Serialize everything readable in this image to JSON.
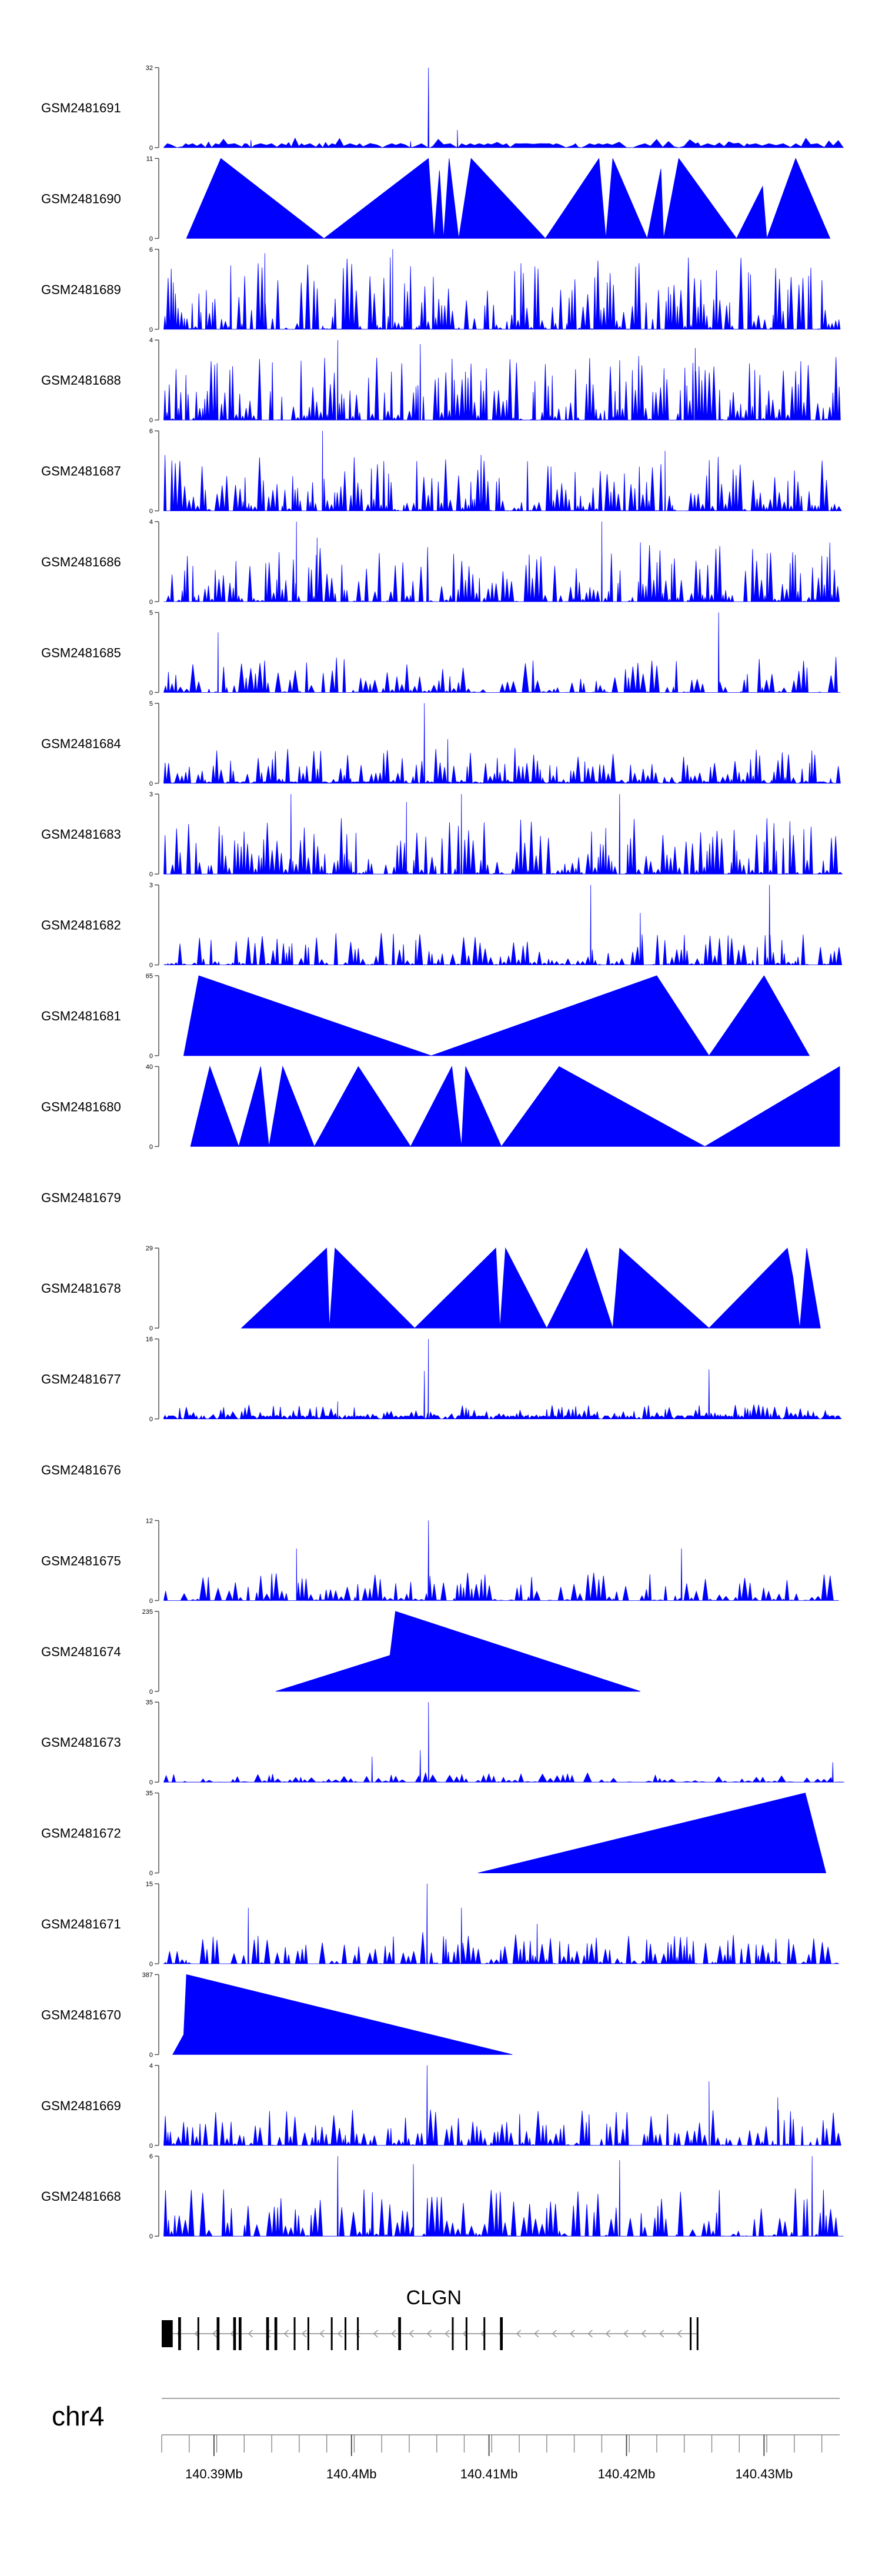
{
  "chart_data": {
    "type": "area",
    "title": "",
    "chromosome": "chr4",
    "xlim": [
      140.3862,
      140.4355
    ],
    "x_ticks": [
      140.39,
      140.4,
      140.41,
      140.42,
      140.43
    ],
    "x_tick_labels": [
      "140.39Mb",
      "140.4Mb",
      "140.41Mb",
      "140.42Mb",
      "140.43Mb"
    ],
    "fill_color": "#0000ff",
    "tracks": [
      {
        "name": "GSM2481691",
        "ymax": 32,
        "y_ticks": [
          "32",
          "0"
        ],
        "style": "peaks",
        "baseline": 0.05,
        "peak_max": 0.12,
        "density": 70,
        "seed": 11,
        "spikes": [
          [
            140.4056,
            1.0
          ],
          [
            140.4077,
            0.22
          ],
          [
            140.4043,
            0.08
          ],
          [
            140.3927,
            0.07
          ]
        ]
      },
      {
        "name": "GSM2481690",
        "ymax": 11,
        "y_ticks": [
          "11",
          "0"
        ],
        "style": "poly",
        "points": [
          [
            140.388,
            0.0
          ],
          [
            140.3905,
            1.0
          ],
          [
            140.398,
            0.0
          ],
          [
            140.4056,
            1.0
          ],
          [
            140.406,
            0.0
          ],
          [
            140.4064,
            0.85
          ],
          [
            140.4067,
            0.0
          ],
          [
            140.4071,
            1.0
          ],
          [
            140.4078,
            0.0
          ],
          [
            140.4087,
            1.0
          ],
          [
            140.4141,
            0.0
          ],
          [
            140.418,
            1.0
          ],
          [
            140.4185,
            0.0
          ],
          [
            140.419,
            1.0
          ],
          [
            140.4215,
            0.0
          ],
          [
            140.4225,
            0.87
          ],
          [
            140.4227,
            0.0
          ],
          [
            140.4238,
            1.0
          ],
          [
            140.428,
            0.0
          ],
          [
            140.4299,
            0.65
          ],
          [
            140.4302,
            0.0
          ],
          [
            140.4323,
            1.0
          ],
          [
            140.4348,
            0.0
          ]
        ]
      },
      {
        "name": "GSM2481689",
        "ymax": 6,
        "y_ticks": [
          "6",
          "0"
        ],
        "style": "peaks",
        "baseline": 0.0,
        "peak_max": 0.9,
        "density": 210,
        "seed": 23,
        "spikes": [
          [
            140.403,
            1.0
          ],
          [
            140.3937,
            0.95
          ]
        ]
      },
      {
        "name": "GSM2481688",
        "ymax": 4,
        "y_ticks": [
          "4",
          "0"
        ],
        "style": "peaks",
        "baseline": 0.0,
        "peak_max": 0.8,
        "density": 210,
        "seed": 37,
        "spikes": [
          [
            140.399,
            1.0
          ],
          [
            140.405,
            0.95
          ],
          [
            140.425,
            0.9
          ]
        ]
      },
      {
        "name": "GSM2481687",
        "ymax": 6,
        "y_ticks": [
          "6",
          "0"
        ],
        "style": "peaks",
        "baseline": 0.0,
        "peak_max": 0.7,
        "density": 200,
        "seed": 41,
        "spikes": [
          [
            140.3979,
            1.0
          ],
          [
            140.4228,
            0.75
          ]
        ]
      },
      {
        "name": "GSM2481686",
        "ymax": 4,
        "y_ticks": [
          "4",
          "0"
        ],
        "style": "peaks",
        "baseline": 0.0,
        "peak_max": 0.75,
        "density": 200,
        "seed": 53,
        "spikes": [
          [
            140.396,
            1.0
          ],
          [
            140.4182,
            1.0
          ],
          [
            140.3975,
            0.8
          ]
        ]
      },
      {
        "name": "GSM2481685",
        "ymax": 5,
        "y_ticks": [
          "5",
          "0"
        ],
        "style": "peaks",
        "baseline": 0.0,
        "peak_max": 0.45,
        "density": 150,
        "seed": 67,
        "spikes": [
          [
            140.4267,
            1.0
          ],
          [
            140.3903,
            0.75
          ]
        ]
      },
      {
        "name": "GSM2481684",
        "ymax": 5,
        "y_ticks": [
          "5",
          "0"
        ],
        "style": "peaks",
        "baseline": 0.02,
        "peak_max": 0.45,
        "density": 190,
        "seed": 71,
        "spikes": [
          [
            140.4053,
            1.0
          ],
          [
            140.407,
            0.55
          ]
        ]
      },
      {
        "name": "GSM2481683",
        "ymax": 3,
        "y_ticks": [
          "3",
          "0"
        ],
        "style": "peaks",
        "baseline": 0.0,
        "peak_max": 0.7,
        "density": 200,
        "seed": 83,
        "spikes": [
          [
            140.3956,
            1.0
          ],
          [
            140.408,
            1.0
          ],
          [
            140.4195,
            1.0
          ],
          [
            140.404,
            0.9
          ]
        ]
      },
      {
        "name": "GSM2481682",
        "ymax": 3,
        "y_ticks": [
          "3",
          "0"
        ],
        "style": "peaks",
        "baseline": 0.0,
        "peak_max": 0.4,
        "density": 170,
        "seed": 97,
        "spikes": [
          [
            140.4174,
            1.0
          ],
          [
            140.4304,
            1.0
          ],
          [
            140.421,
            0.65
          ]
        ]
      },
      {
        "name": "GSM2481681",
        "ymax": 65,
        "y_ticks": [
          "65",
          "0"
        ],
        "style": "poly",
        "points": [
          [
            140.3878,
            0.0
          ],
          [
            140.3889,
            1.0
          ],
          [
            140.4058,
            0.0
          ],
          [
            140.4222,
            1.0
          ],
          [
            140.426,
            0.0
          ],
          [
            140.43,
            1.0
          ],
          [
            140.4333,
            0.0
          ]
        ]
      },
      {
        "name": "GSM2481680",
        "ymax": 40,
        "y_ticks": [
          "40",
          "0"
        ],
        "style": "poly",
        "points": [
          [
            140.3883,
            0.0
          ],
          [
            140.3897,
            1.0
          ],
          [
            140.3918,
            0.0
          ],
          [
            140.3934,
            1.0
          ],
          [
            140.394,
            0.0
          ],
          [
            140.395,
            1.0
          ],
          [
            140.3973,
            0.0
          ],
          [
            140.4005,
            1.0
          ],
          [
            140.4043,
            0.0
          ],
          [
            140.4073,
            1.0
          ],
          [
            140.408,
            0.0
          ],
          [
            140.4083,
            1.0
          ],
          [
            140.4109,
            0.0
          ],
          [
            140.4151,
            1.0
          ],
          [
            140.4257,
            0.0
          ],
          [
            140.4355,
            1.0
          ],
          [
            140.4355,
            0.0
          ]
        ]
      },
      {
        "name": "GSM2481679",
        "ymax": 0,
        "y_ticks": [],
        "style": "empty"
      },
      {
        "name": "GSM2481678",
        "ymax": 29,
        "y_ticks": [
          "29",
          "0"
        ],
        "style": "poly",
        "points": [
          [
            140.392,
            0.0
          ],
          [
            140.3982,
            1.0
          ],
          [
            140.3984,
            0.0
          ],
          [
            140.3988,
            1.0
          ],
          [
            140.4046,
            0.0
          ],
          [
            140.4105,
            1.0
          ],
          [
            140.4108,
            0.0
          ],
          [
            140.4112,
            1.0
          ],
          [
            140.4142,
            0.0
          ],
          [
            140.4171,
            1.0
          ],
          [
            140.419,
            0.0
          ],
          [
            140.4195,
            1.0
          ],
          [
            140.426,
            0.0
          ],
          [
            140.4317,
            1.0
          ],
          [
            140.4321,
            0.64
          ],
          [
            140.4326,
            0.0
          ],
          [
            140.4331,
            1.0
          ],
          [
            140.4341,
            0.0
          ]
        ]
      },
      {
        "name": "GSM2481677",
        "ymax": 16,
        "y_ticks": [
          "16",
          "0"
        ],
        "style": "peaks",
        "baseline": 0.04,
        "peak_max": 0.18,
        "density": 190,
        "seed": 101,
        "spikes": [
          [
            140.4056,
            1.0
          ],
          [
            140.4053,
            0.6
          ],
          [
            140.426,
            0.62
          ],
          [
            140.399,
            0.22
          ]
        ]
      },
      {
        "name": "GSM2481676",
        "ymax": 0,
        "y_ticks": [],
        "style": "empty"
      },
      {
        "name": "GSM2481675",
        "ymax": 12,
        "y_ticks": [
          "12",
          "0"
        ],
        "style": "peaks",
        "baseline": 0.0,
        "peak_max": 0.35,
        "density": 140,
        "seed": 113,
        "spikes": [
          [
            140.4056,
            1.0
          ],
          [
            140.396,
            0.65
          ],
          [
            140.424,
            0.65
          ]
        ]
      },
      {
        "name": "GSM2481674",
        "ymax": 235,
        "y_ticks": [
          "235",
          "0"
        ],
        "style": "poly",
        "points": [
          [
            140.3945,
            0.0
          ],
          [
            140.4028,
            0.45
          ],
          [
            140.4032,
            1.0
          ],
          [
            140.421,
            0.0
          ]
        ]
      },
      {
        "name": "GSM2481673",
        "ymax": 35,
        "y_ticks": [
          "35",
          "0"
        ],
        "style": "peaks",
        "baseline": 0.0,
        "peak_max": 0.12,
        "density": 110,
        "seed": 127,
        "spikes": [
          [
            140.4056,
            1.0
          ],
          [
            140.405,
            0.4
          ],
          [
            140.4015,
            0.32
          ],
          [
            140.435,
            0.25
          ]
        ]
      },
      {
        "name": "GSM2481672",
        "ymax": 35,
        "y_ticks": [
          "35",
          "0"
        ],
        "style": "poly",
        "points": [
          [
            140.4092,
            0.0
          ],
          [
            140.433,
            1.0
          ],
          [
            140.4345,
            0.0
          ]
        ]
      },
      {
        "name": "GSM2481671",
        "ymax": 15,
        "y_ticks": [
          "15",
          "0"
        ],
        "style": "peaks",
        "baseline": 0.0,
        "peak_max": 0.4,
        "density": 160,
        "seed": 131,
        "spikes": [
          [
            140.4055,
            1.0
          ],
          [
            140.3925,
            0.7
          ],
          [
            140.408,
            0.7
          ],
          [
            140.4135,
            0.5
          ]
        ]
      },
      {
        "name": "GSM2481670",
        "ymax": 387,
        "y_ticks": [
          "387",
          "0"
        ],
        "style": "poly",
        "points": [
          [
            140.387,
            0.0
          ],
          [
            140.3878,
            0.25
          ],
          [
            140.388,
            1.0
          ],
          [
            140.4117,
            0.0
          ]
        ]
      },
      {
        "name": "GSM2481669",
        "ymax": 4,
        "y_ticks": [
          "4",
          "0"
        ],
        "style": "peaks",
        "baseline": 0.0,
        "peak_max": 0.45,
        "density": 170,
        "seed": 139,
        "spikes": [
          [
            140.4055,
            1.0
          ],
          [
            140.426,
            0.8
          ],
          [
            140.431,
            0.6
          ]
        ]
      },
      {
        "name": "GSM2481668",
        "ymax": 6,
        "y_ticks": [
          "6",
          "0"
        ],
        "style": "peaks",
        "baseline": 0.0,
        "peak_max": 0.6,
        "density": 150,
        "seed": 151,
        "spikes": [
          [
            140.399,
            1.0
          ],
          [
            140.4195,
            0.95
          ],
          [
            140.4335,
            1.0
          ],
          [
            140.4045,
            0.9
          ]
        ]
      }
    ],
    "gene": {
      "name": "CLGN",
      "strand": "-",
      "start": 140.3862,
      "end": 140.4251,
      "exons": [
        [
          140.3862,
          140.387
        ],
        [
          140.3874,
          140.3876
        ],
        [
          140.3888,
          140.3889
        ],
        [
          140.3902,
          140.3904
        ],
        [
          140.3914,
          140.3916
        ],
        [
          140.3918,
          140.392
        ],
        [
          140.3938,
          140.394
        ],
        [
          140.3944,
          140.3946
        ],
        [
          140.3958,
          140.3959
        ],
        [
          140.3968,
          140.3969
        ],
        [
          140.3985,
          140.3986
        ],
        [
          140.3995,
          140.3996
        ],
        [
          140.4004,
          140.4005
        ],
        [
          140.4034,
          140.4036
        ],
        [
          140.4073,
          140.4074
        ],
        [
          140.4083,
          140.4084
        ],
        [
          140.4096,
          140.4097
        ],
        [
          140.4108,
          140.411
        ],
        [
          140.4246,
          140.4247
        ],
        [
          140.4251,
          140.4252
        ]
      ]
    }
  }
}
